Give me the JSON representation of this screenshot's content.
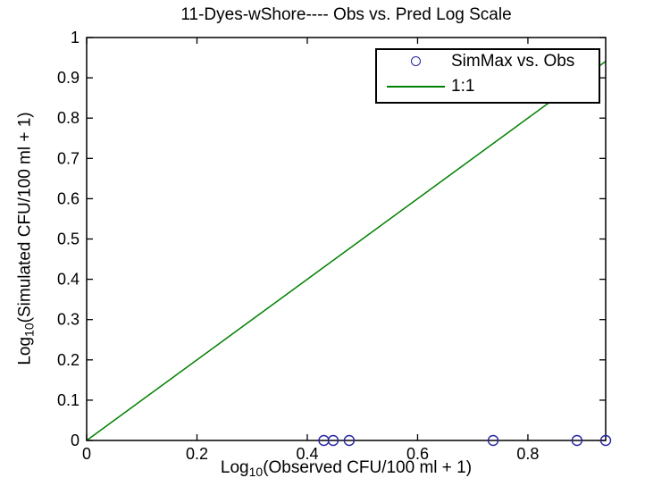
{
  "window": {
    "background": "#ffffff"
  },
  "chart_data": {
    "type": "scatter",
    "title": "11-Dyes-wShore---- Obs vs. Pred Log Scale",
    "xlabel": {
      "prefix": "Log",
      "sub": "10",
      "rest": "(Observed CFU/100 ml + 1)"
    },
    "ylabel": {
      "prefix": "Log",
      "sub": "10",
      "rest": "(Simulated CFU/100 ml + 1)"
    },
    "xlim": [
      0,
      0.941
    ],
    "ylim": [
      0,
      1
    ],
    "xticks": {
      "values": [
        0,
        0.2,
        0.4,
        0.6,
        0.8
      ],
      "labels": [
        "0",
        "0.2",
        "0.4",
        "0.6",
        "0.8"
      ]
    },
    "yticks": {
      "values": [
        0,
        0.1,
        0.2,
        0.3,
        0.4,
        0.5,
        0.6,
        0.7,
        0.8,
        0.9,
        1
      ],
      "labels": [
        "0",
        "0.1",
        "0.2",
        "0.3",
        "0.4",
        "0.5",
        "0.6",
        "0.7",
        "0.8",
        "0.9",
        "1"
      ]
    },
    "grid": false,
    "legend": {
      "position": "top-right"
    },
    "axis_color": "#000000",
    "tick_label_color": "#000000",
    "series": [
      {
        "name": "SimMax vs. Obs",
        "kind": "scatter",
        "marker": "circle",
        "color": "#2424A4",
        "fill": "none",
        "points": [
          [
            0.43,
            0
          ],
          [
            0.447,
            0
          ],
          [
            0.476,
            0
          ],
          [
            0.737,
            0
          ],
          [
            0.889,
            0
          ],
          [
            0.941,
            0
          ]
        ]
      },
      {
        "name": "1:1",
        "kind": "line",
        "color": "#008000",
        "points": [
          [
            0,
            0
          ],
          [
            0.941,
            0.941
          ]
        ]
      }
    ]
  }
}
